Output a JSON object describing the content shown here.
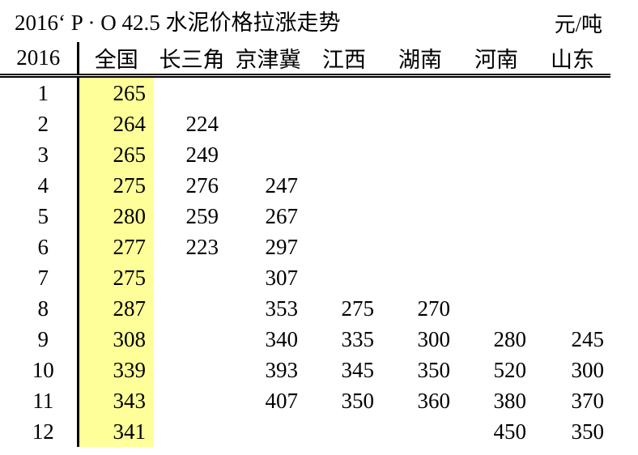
{
  "header": {
    "title": "2016‘ P · O 42.5 水泥价格拉涨走势",
    "unit": "元/吨"
  },
  "table": {
    "highlight_color": "#FFFF99",
    "columns": [
      "2016",
      "全国",
      "长三角",
      "京津冀",
      "江西",
      "湖南",
      "河南",
      "山东"
    ],
    "rows": [
      {
        "month": "1",
        "cells": [
          "265",
          "",
          "",
          "",
          "",
          "",
          ""
        ]
      },
      {
        "month": "2",
        "cells": [
          "264",
          "224",
          "",
          "",
          "",
          "",
          ""
        ]
      },
      {
        "month": "3",
        "cells": [
          "265",
          "249",
          "",
          "",
          "",
          "",
          ""
        ]
      },
      {
        "month": "4",
        "cells": [
          "275",
          "276",
          "247",
          "",
          "",
          "",
          ""
        ]
      },
      {
        "month": "5",
        "cells": [
          "280",
          "259",
          "267",
          "",
          "",
          "",
          ""
        ]
      },
      {
        "month": "6",
        "cells": [
          "277",
          "223",
          "297",
          "",
          "",
          "",
          ""
        ]
      },
      {
        "month": "7",
        "cells": [
          "275",
          "",
          "307",
          "",
          "",
          "",
          ""
        ]
      },
      {
        "month": "8",
        "cells": [
          "287",
          "",
          "353",
          "275",
          "270",
          "",
          ""
        ]
      },
      {
        "month": "9",
        "cells": [
          "308",
          "",
          "340",
          "335",
          "300",
          "280",
          "245"
        ]
      },
      {
        "month": "10",
        "cells": [
          "339",
          "",
          "393",
          "345",
          "350",
          "520",
          "300"
        ]
      },
      {
        "month": "11",
        "cells": [
          "343",
          "",
          "407",
          "350",
          "360",
          "380",
          "370"
        ]
      },
      {
        "month": "12",
        "cells": [
          "341",
          "",
          "",
          "",
          "",
          "450",
          "350"
        ]
      }
    ]
  },
  "chart_data": {
    "type": "table",
    "title": "2016‘ P · O 42.5 水泥价格拉涨走势",
    "unit": "元/吨",
    "x_label": "2016",
    "categories": [
      1,
      2,
      3,
      4,
      5,
      6,
      7,
      8,
      9,
      10,
      11,
      12
    ],
    "series": [
      {
        "name": "全国",
        "values": [
          265,
          264,
          265,
          275,
          280,
          277,
          275,
          287,
          308,
          339,
          343,
          341
        ]
      },
      {
        "name": "长三角",
        "values": [
          null,
          224,
          249,
          276,
          259,
          223,
          null,
          null,
          null,
          null,
          null,
          null
        ]
      },
      {
        "name": "京津冀",
        "values": [
          null,
          null,
          null,
          247,
          267,
          297,
          307,
          353,
          340,
          393,
          407,
          null
        ]
      },
      {
        "name": "江西",
        "values": [
          null,
          null,
          null,
          null,
          null,
          null,
          null,
          275,
          335,
          345,
          350,
          null
        ]
      },
      {
        "name": "湖南",
        "values": [
          null,
          null,
          null,
          null,
          null,
          null,
          null,
          270,
          300,
          350,
          360,
          null
        ]
      },
      {
        "name": "河南",
        "values": [
          null,
          null,
          null,
          null,
          null,
          null,
          null,
          null,
          280,
          520,
          380,
          450
        ]
      },
      {
        "name": "山东",
        "values": [
          null,
          null,
          null,
          null,
          null,
          null,
          null,
          null,
          245,
          300,
          370,
          350
        ]
      }
    ],
    "highlighted_series": "全国",
    "layout": {
      "grid": false,
      "header_rule": "double",
      "national_column_highlight": "#FFFF99"
    }
  }
}
